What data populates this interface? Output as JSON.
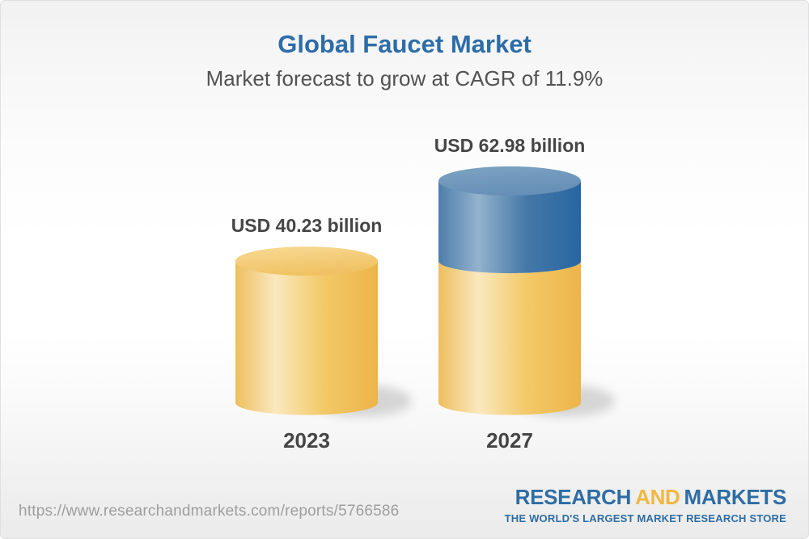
{
  "chart_data": {
    "type": "bar",
    "style": "3d-cylinder",
    "title": "Global Faucet Market",
    "subtitle": "Market forecast to grow at CAGR of 11.9%",
    "cagr_percent": 11.9,
    "unit": "USD billion",
    "categories": [
      "2023",
      "2027"
    ],
    "values": [
      40.23,
      62.98
    ],
    "bar_labels": [
      "USD 40.23 billion",
      "USD 62.98 billion"
    ],
    "legend": "none",
    "axes": "none",
    "colors": {
      "bar_yellow": "#f1c262",
      "bar_blue": "#4a7cab",
      "title_blue": "#2d6da8",
      "label_gray": "#454545"
    },
    "bars": [
      {
        "category": "2023",
        "label": "USD 40.23 billion",
        "total": 40.23,
        "segments": [
          {
            "name": "market-size-2023",
            "color": "yellow",
            "value": 40.23
          }
        ]
      },
      {
        "category": "2027",
        "label": "USD 62.98 billion",
        "total": 62.98,
        "segments": [
          {
            "name": "market-size-2023",
            "color": "yellow",
            "value": 40.23
          },
          {
            "name": "forecast-growth",
            "color": "blue",
            "value": 22.75
          }
        ]
      }
    ]
  },
  "footer": {
    "url": "https://www.researchandmarkets.com/reports/5766586",
    "logo": {
      "word1": "RESEARCH",
      "word2": "AND",
      "word3": "MARKETS",
      "tagline": "THE WORLD'S LARGEST MARKET RESEARCH STORE",
      "blue": "#2e6da4",
      "gold": "#f0b841"
    }
  }
}
